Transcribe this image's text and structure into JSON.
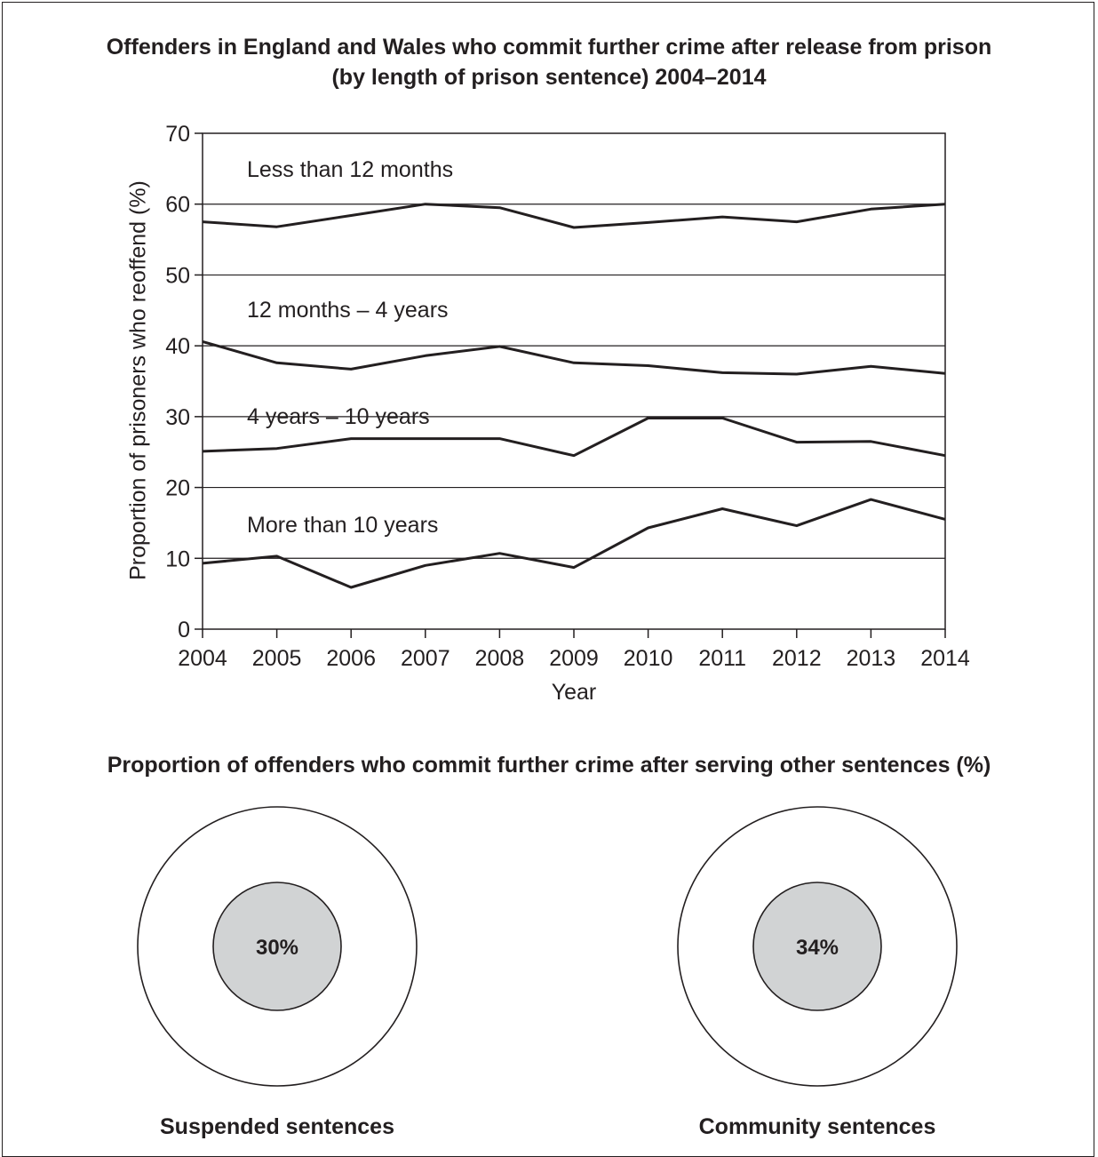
{
  "page": {
    "title_line1": "Offenders in England and Wales who commit further crime after release from prison",
    "title_line2": "(by length of prison sentence) 2004–2014",
    "subtitle": "Proportion of offenders who commit further crime after serving other sentences (%)"
  },
  "chart_data": [
    {
      "type": "line",
      "title": "Offenders in England and Wales who commit further crime after release from prison (by length of prison sentence) 2004–2014",
      "xlabel": "Year",
      "ylabel": "Proportion of prisoners who reoffend (%)",
      "x": [
        2004,
        2005,
        2006,
        2007,
        2008,
        2009,
        2010,
        2011,
        2012,
        2013,
        2014
      ],
      "ylim": [
        0,
        70
      ],
      "yticks": [
        0,
        10,
        20,
        30,
        40,
        50,
        60,
        70
      ],
      "grid": "horizontal",
      "line_color": "#231f20",
      "series": [
        {
          "name": "Less than 12 months",
          "values": [
            57.5,
            56.8,
            58.4,
            60.0,
            59.5,
            56.7,
            57.4,
            58.2,
            57.5,
            59.3,
            60.0
          ]
        },
        {
          "name": "12 months – 4 years",
          "values": [
            40.6,
            37.6,
            36.7,
            38.6,
            39.9,
            37.6,
            37.2,
            36.2,
            36.0,
            37.1,
            36.1
          ]
        },
        {
          "name": "4 years – 10 years",
          "values": [
            25.1,
            25.5,
            26.9,
            26.9,
            26.9,
            24.5,
            29.8,
            29.8,
            26.4,
            26.5,
            24.5
          ]
        },
        {
          "name": "More than 10 years",
          "values": [
            9.3,
            10.3,
            5.9,
            9.0,
            10.7,
            8.7,
            14.3,
            17.0,
            14.6,
            18.3,
            15.5
          ]
        }
      ]
    },
    {
      "type": "pie",
      "title": "Proportion of offenders who commit further crime after serving other sentences (%)",
      "categories": [
        "Suspended sentences",
        "Community sentences"
      ],
      "values": [
        30,
        34
      ],
      "labels": [
        "30%",
        "34%"
      ],
      "inner_fill": "#d1d3d4"
    }
  ]
}
